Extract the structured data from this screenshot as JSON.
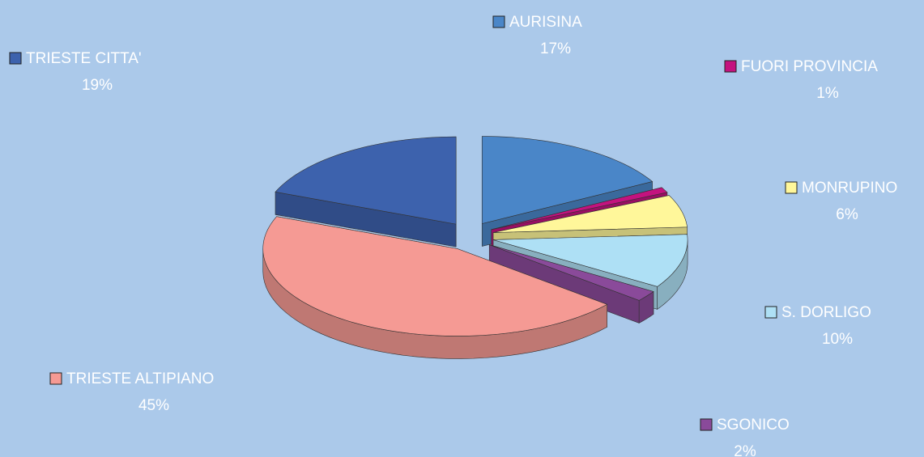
{
  "chart_data": {
    "type": "pie",
    "categories": [
      "AURISINA",
      "FUORI PROVINCIA",
      "MONRUPINO",
      "S. DORLIGO",
      "SGONICO",
      "TRIESTE ALTIPIANO",
      "TRIESTE CITTA'"
    ],
    "values": [
      17,
      1,
      6,
      10,
      2,
      45,
      19
    ],
    "value_labels": [
      "17%",
      "1%",
      "6%",
      "10%",
      "2%",
      "45%",
      "19%"
    ],
    "colors": [
      "#4a86c8",
      "#c4127f",
      "#fff79a",
      "#aee0f5",
      "#8a4a9a",
      "#f59a94",
      "#3d62ad"
    ]
  }
}
